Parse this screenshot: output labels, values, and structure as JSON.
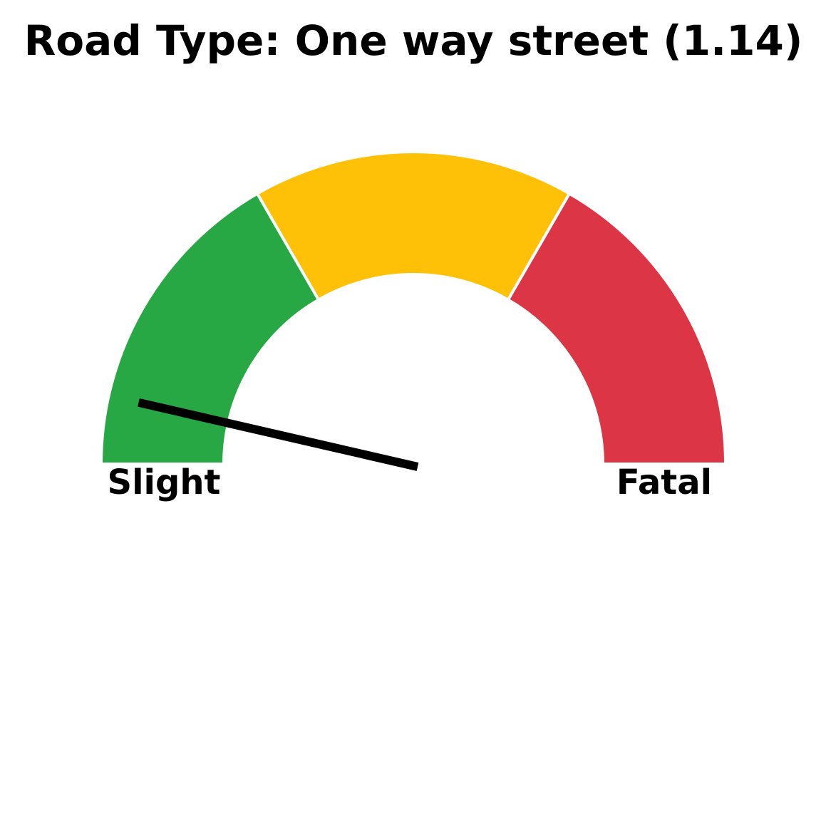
{
  "chart_data": {
    "type": "gauge",
    "title": "Road Type: One way street (1.14)",
    "value": 1.14,
    "range": [
      1,
      3
    ],
    "bands": [
      {
        "from": 1.0,
        "to": 1.6667,
        "color": "#28a745"
      },
      {
        "from": 1.6667,
        "to": 2.3333,
        "color": "#ffc107"
      },
      {
        "from": 2.3333,
        "to": 3.0,
        "color": "#dc3545"
      }
    ],
    "band_separator_color": "#ffffff",
    "needle_color": "#000000",
    "labels": {
      "min": "Slight",
      "max": "Fatal"
    }
  }
}
